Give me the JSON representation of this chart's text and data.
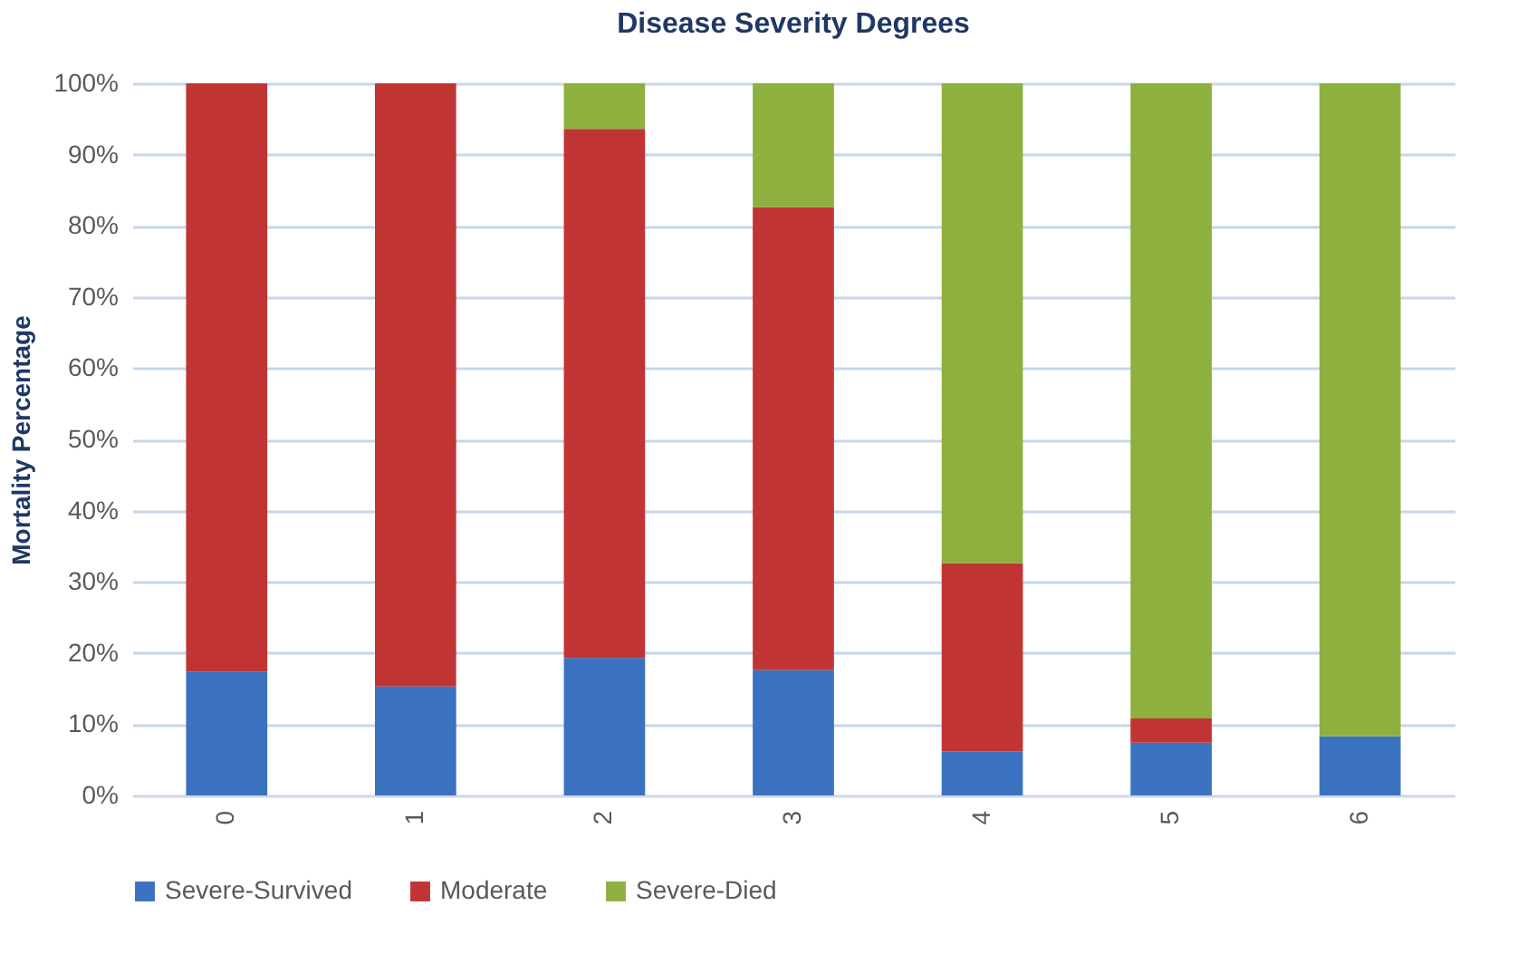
{
  "chart_data": {
    "type": "bar",
    "title": "Disease Severity Degrees",
    "ylabel": "Mortality Percentage",
    "categories": [
      "0",
      "1",
      "2",
      "3",
      "4",
      "5",
      "6"
    ],
    "stacked": true,
    "series": [
      {
        "name": "Severe-Survived",
        "color": "#3a72c0",
        "values": [
          17.4,
          15.3,
          19.3,
          17.6,
          6.2,
          7.4,
          8.3
        ]
      },
      {
        "name": "Moderate",
        "color": "#c03533",
        "values": [
          82.6,
          84.7,
          74.3,
          65.0,
          26.4,
          3.4,
          0
        ]
      },
      {
        "name": "Severe-Died",
        "color": "#8db03f",
        "values": [
          0,
          0,
          6.4,
          17.4,
          67.4,
          89.2,
          91.7
        ]
      }
    ],
    "ylim": [
      0,
      100
    ],
    "yticks": [
      {
        "value": 0,
        "label": "0%"
      },
      {
        "value": 10,
        "label": "10%"
      },
      {
        "value": 20,
        "label": "20%"
      },
      {
        "value": 30,
        "label": "30%"
      },
      {
        "value": 40,
        "label": "40%"
      },
      {
        "value": 50,
        "label": "50%"
      },
      {
        "value": 60,
        "label": "60%"
      },
      {
        "value": 70,
        "label": "70%"
      },
      {
        "value": 80,
        "label": "80%"
      },
      {
        "value": 90,
        "label": "90%"
      },
      {
        "value": 100,
        "label": "100%"
      }
    ],
    "grid": "y",
    "legend": "bottom"
  }
}
